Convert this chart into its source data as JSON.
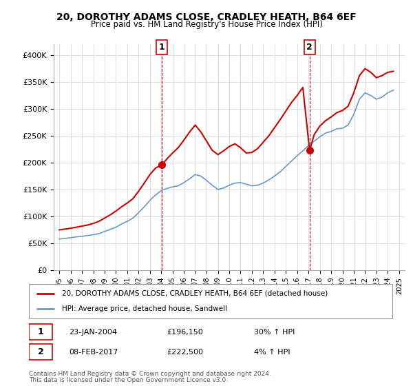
{
  "title": "20, DOROTHY ADAMS CLOSE, CRADLEY HEATH, B64 6EF",
  "subtitle": "Price paid vs. HM Land Registry's House Price Index (HPI)",
  "legend_line1": "20, DOROTHY ADAMS CLOSE, CRADLEY HEATH, B64 6EF (detached house)",
  "legend_line2": "HPI: Average price, detached house, Sandwell",
  "footnote1": "Contains HM Land Registry data © Crown copyright and database right 2024.",
  "footnote2": "This data is licensed under the Open Government Licence v3.0.",
  "annotation1": {
    "label": "1",
    "date": 2004.06,
    "price": 196150,
    "text_date": "23-JAN-2004",
    "text_price": "£196,150",
    "text_hpi": "30% ↑ HPI"
  },
  "annotation2": {
    "label": "2",
    "date": 2017.1,
    "price": 222500,
    "text_date": "08-FEB-2017",
    "text_price": "£222,500",
    "text_hpi": "4% ↑ HPI"
  },
  "red_color": "#cc0000",
  "blue_color": "#6699cc",
  "background_color": "#ffffff",
  "grid_color": "#dddddd",
  "ylim": [
    0,
    420000
  ],
  "yticks": [
    0,
    50000,
    100000,
    150000,
    200000,
    250000,
    300000,
    350000,
    400000
  ],
  "ytick_labels": [
    "£0",
    "£50K",
    "£100K",
    "£150K",
    "£200K",
    "£250K",
    "£300K",
    "£350K",
    "£400K"
  ],
  "hpi_years": [
    1995.0,
    1995.5,
    1996.0,
    1996.5,
    1997.0,
    1997.5,
    1998.0,
    1998.5,
    1999.0,
    1999.5,
    2000.0,
    2000.5,
    2001.0,
    2001.5,
    2002.0,
    2002.5,
    2003.0,
    2003.5,
    2004.0,
    2004.5,
    2005.0,
    2005.5,
    2006.0,
    2006.5,
    2007.0,
    2007.5,
    2008.0,
    2008.5,
    2009.0,
    2009.5,
    2010.0,
    2010.5,
    2011.0,
    2011.5,
    2012.0,
    2012.5,
    2013.0,
    2013.5,
    2014.0,
    2014.5,
    2015.0,
    2015.5,
    2016.0,
    2016.5,
    2017.0,
    2017.5,
    2018.0,
    2018.5,
    2019.0,
    2019.5,
    2020.0,
    2020.5,
    2021.0,
    2021.5,
    2022.0,
    2022.5,
    2023.0,
    2023.5,
    2024.0,
    2024.5
  ],
  "hpi_values": [
    58000,
    59000,
    60500,
    62000,
    63000,
    64500,
    66000,
    68000,
    72000,
    76000,
    80000,
    86000,
    91000,
    97000,
    107000,
    118000,
    130000,
    140000,
    148000,
    152000,
    155000,
    157000,
    163000,
    170000,
    178000,
    175000,
    167000,
    158000,
    150000,
    153000,
    158000,
    162000,
    163000,
    160000,
    157000,
    158000,
    162000,
    168000,
    175000,
    183000,
    193000,
    203000,
    213000,
    222000,
    232000,
    240000,
    248000,
    255000,
    258000,
    263000,
    264000,
    270000,
    290000,
    318000,
    330000,
    325000,
    318000,
    322000,
    330000,
    335000
  ],
  "red_years": [
    1995.0,
    1995.5,
    1996.0,
    1996.5,
    1997.0,
    1997.5,
    1998.0,
    1998.5,
    1999.0,
    1999.5,
    2000.0,
    2000.5,
    2001.0,
    2001.5,
    2002.0,
    2002.5,
    2003.0,
    2003.5,
    2004.06,
    2004.5,
    2005.0,
    2005.5,
    2006.0,
    2006.5,
    2007.0,
    2007.5,
    2008.0,
    2008.5,
    2009.0,
    2009.5,
    2010.0,
    2010.5,
    2011.0,
    2011.5,
    2012.0,
    2012.5,
    2013.0,
    2013.5,
    2014.0,
    2014.5,
    2015.0,
    2015.5,
    2016.0,
    2016.5,
    2017.1,
    2017.5,
    2018.0,
    2018.5,
    2019.0,
    2019.5,
    2020.0,
    2020.5,
    2021.0,
    2021.5,
    2022.0,
    2022.5,
    2023.0,
    2023.5,
    2024.0,
    2024.5
  ],
  "red_values": [
    75000,
    76500,
    78000,
    80000,
    82000,
    84000,
    87000,
    91000,
    97000,
    103000,
    110000,
    118000,
    125000,
    133000,
    147000,
    162000,
    178000,
    190000,
    196150,
    207000,
    218000,
    228000,
    242000,
    257000,
    270000,
    257000,
    240000,
    223000,
    215000,
    222000,
    230000,
    235000,
    228000,
    218000,
    219000,
    226000,
    238000,
    250000,
    265000,
    280000,
    296000,
    312000,
    325000,
    340000,
    222500,
    252000,
    268000,
    278000,
    285000,
    293000,
    297000,
    305000,
    330000,
    362000,
    375000,
    368000,
    358000,
    362000,
    368000,
    370000
  ]
}
